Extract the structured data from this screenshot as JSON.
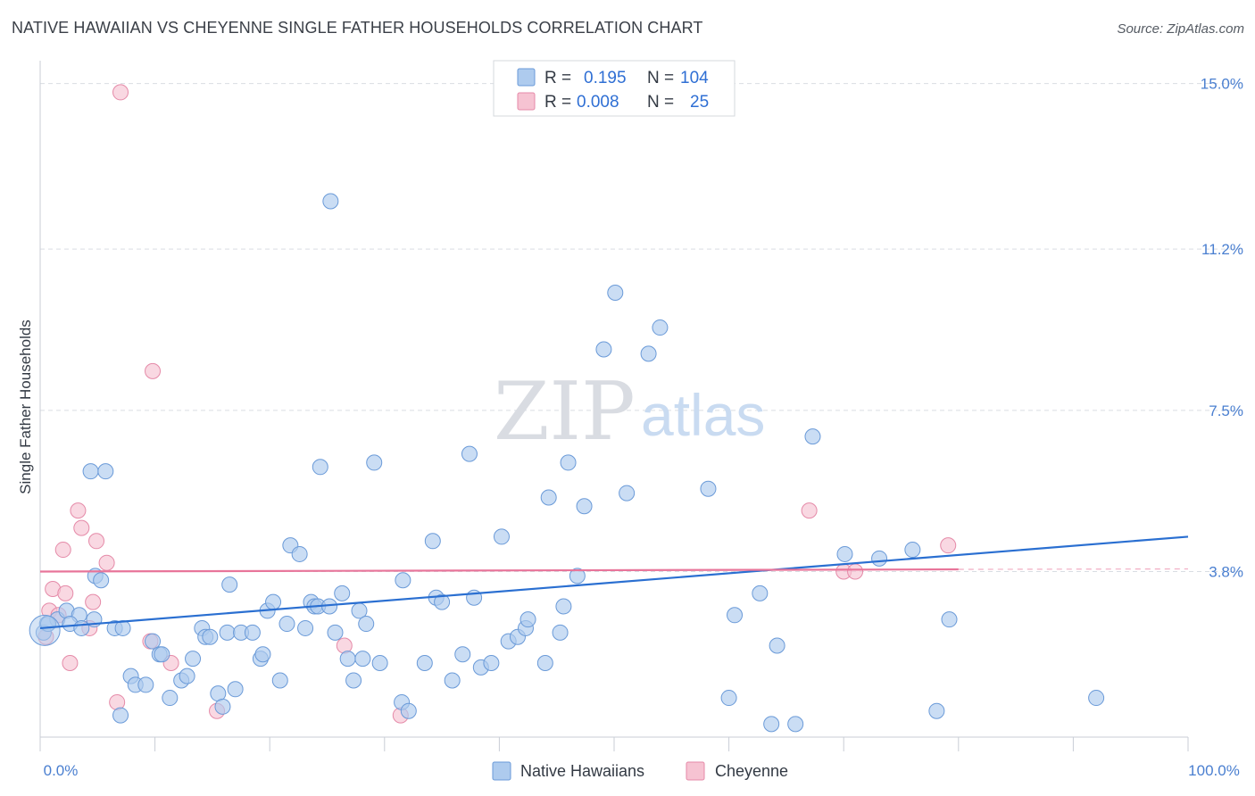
{
  "title": "NATIVE HAWAIIAN VS CHEYENNE SINGLE FATHER HOUSEHOLDS CORRELATION CHART",
  "source": "Source: ZipAtlas.com",
  "watermark": {
    "zip": "ZIP",
    "atlas": "atlas"
  },
  "colors": {
    "blue_fill": "#aecbee",
    "blue_stroke": "#6a9ad8",
    "blue_line": "#2a6fd1",
    "pink_fill": "#f6c3d2",
    "pink_stroke": "#e58aa8",
    "pink_line": "#e8759a",
    "grid": "#d9dde3",
    "tick_text": "#4a7fd0"
  },
  "legend": {
    "rows": [
      {
        "r_label": "R = ",
        "r_value": "0.195",
        "n_label": "N = ",
        "n_value": "104"
      },
      {
        "r_label": "R = ",
        "r_value": "0.008",
        "n_label": "N = ",
        "n_value": "25"
      }
    ]
  },
  "bottom_legend": [
    "Native Hawaiians",
    "Cheyenne"
  ],
  "chart_data": {
    "type": "scatter",
    "title": "NATIVE HAWAIIAN VS CHEYENNE SINGLE FATHER HOUSEHOLDS CORRELATION CHART",
    "xlabel": "",
    "ylabel": "Single Father Households",
    "xlim": [
      0,
      100
    ],
    "ylim": [
      0,
      15.3
    ],
    "x_tick_labels": [
      "0.0%",
      "100.0%"
    ],
    "y_ticks": [
      3.8,
      7.5,
      11.2,
      15.0
    ],
    "y_tick_labels": [
      "3.8%",
      "7.5%",
      "11.2%",
      "15.0%"
    ],
    "grid": true,
    "legend_position": "top-center",
    "series": [
      {
        "name": "Native Hawaiians",
        "trend": {
          "x0": 0,
          "y0": 2.5,
          "x1": 100,
          "y1": 4.6
        },
        "points": [
          [
            0.6,
            2.6
          ],
          [
            1.5,
            2.7
          ],
          [
            2.3,
            2.9
          ],
          [
            3.4,
            2.8
          ],
          [
            2.6,
            2.6
          ],
          [
            4.7,
            2.7
          ],
          [
            3.6,
            2.5
          ],
          [
            4.4,
            6.1
          ],
          [
            5.7,
            6.1
          ],
          [
            4.8,
            3.7
          ],
          [
            5.3,
            3.6
          ],
          [
            6.5,
            2.5
          ],
          [
            7.2,
            2.5
          ],
          [
            7.0,
            0.5
          ],
          [
            7.9,
            1.4
          ],
          [
            8.3,
            1.2
          ],
          [
            9.2,
            1.2
          ],
          [
            9.8,
            2.2
          ],
          [
            10.4,
            1.9
          ],
          [
            10.6,
            1.9
          ],
          [
            11.3,
            0.9
          ],
          [
            12.3,
            1.3
          ],
          [
            12.8,
            1.4
          ],
          [
            13.3,
            1.8
          ],
          [
            14.1,
            2.5
          ],
          [
            14.4,
            2.3
          ],
          [
            14.8,
            2.3
          ],
          [
            15.5,
            1.0
          ],
          [
            15.9,
            0.7
          ],
          [
            16.3,
            2.4
          ],
          [
            16.5,
            3.5
          ],
          [
            17.0,
            1.1
          ],
          [
            17.5,
            2.4
          ],
          [
            18.5,
            2.4
          ],
          [
            19.2,
            1.8
          ],
          [
            19.4,
            1.9
          ],
          [
            19.8,
            2.9
          ],
          [
            20.3,
            3.1
          ],
          [
            20.9,
            1.3
          ],
          [
            21.5,
            2.6
          ],
          [
            21.8,
            4.4
          ],
          [
            22.6,
            4.2
          ],
          [
            23.1,
            2.5
          ],
          [
            23.6,
            3.1
          ],
          [
            23.9,
            3.0
          ],
          [
            24.2,
            3.0
          ],
          [
            24.4,
            6.2
          ],
          [
            25.2,
            3.0
          ],
          [
            25.3,
            12.3
          ],
          [
            25.7,
            2.4
          ],
          [
            26.3,
            3.3
          ],
          [
            26.8,
            1.8
          ],
          [
            27.3,
            1.3
          ],
          [
            27.8,
            2.9
          ],
          [
            28.1,
            1.8
          ],
          [
            28.4,
            2.6
          ],
          [
            29.1,
            6.3
          ],
          [
            29.6,
            1.7
          ],
          [
            31.5,
            0.8
          ],
          [
            31.6,
            3.6
          ],
          [
            32.1,
            0.6
          ],
          [
            33.5,
            1.7
          ],
          [
            34.2,
            4.5
          ],
          [
            34.5,
            3.2
          ],
          [
            35.0,
            3.1
          ],
          [
            35.9,
            1.3
          ],
          [
            36.8,
            1.9
          ],
          [
            37.4,
            6.5
          ],
          [
            37.8,
            3.2
          ],
          [
            38.4,
            1.6
          ],
          [
            39.3,
            1.7
          ],
          [
            40.2,
            4.6
          ],
          [
            40.8,
            2.2
          ],
          [
            41.6,
            2.3
          ],
          [
            42.3,
            2.5
          ],
          [
            42.5,
            2.7
          ],
          [
            44.0,
            1.7
          ],
          [
            44.3,
            5.5
          ],
          [
            45.3,
            2.4
          ],
          [
            45.6,
            3.0
          ],
          [
            46.0,
            6.3
          ],
          [
            46.8,
            3.7
          ],
          [
            47.4,
            5.3
          ],
          [
            49.1,
            8.9
          ],
          [
            50.1,
            10.2
          ],
          [
            51.1,
            5.6
          ],
          [
            53.0,
            8.8
          ],
          [
            54.0,
            9.4
          ],
          [
            58.2,
            5.7
          ],
          [
            60.0,
            0.9
          ],
          [
            60.5,
            2.8
          ],
          [
            62.7,
            3.3
          ],
          [
            63.7,
            0.3
          ],
          [
            64.2,
            2.1
          ],
          [
            65.8,
            0.3
          ],
          [
            67.3,
            6.9
          ],
          [
            70.1,
            4.2
          ],
          [
            73.1,
            4.1
          ],
          [
            76.0,
            4.3
          ],
          [
            78.1,
            0.6
          ],
          [
            79.2,
            2.7
          ],
          [
            92.0,
            0.9
          ],
          [
            0.3,
            2.4
          ],
          [
            0.7,
            2.6
          ]
        ]
      },
      {
        "name": "Cheyenne",
        "trend": {
          "x0": 0,
          "y0": 3.8,
          "x1": 80,
          "y1": 3.85
        },
        "points": [
          [
            0.5,
            2.3
          ],
          [
            0.8,
            2.9
          ],
          [
            1.1,
            3.4
          ],
          [
            1.6,
            2.8
          ],
          [
            2.0,
            4.3
          ],
          [
            2.2,
            3.3
          ],
          [
            2.6,
            1.7
          ],
          [
            3.3,
            5.2
          ],
          [
            3.6,
            4.8
          ],
          [
            4.3,
            2.5
          ],
          [
            4.6,
            3.1
          ],
          [
            4.9,
            4.5
          ],
          [
            5.8,
            4.0
          ],
          [
            6.7,
            0.8
          ],
          [
            7.0,
            14.8
          ],
          [
            9.6,
            2.2
          ],
          [
            9.8,
            8.4
          ],
          [
            11.4,
            1.7
          ],
          [
            15.4,
            0.6
          ],
          [
            26.5,
            2.1
          ],
          [
            31.4,
            0.5
          ],
          [
            67.0,
            5.2
          ],
          [
            70.0,
            3.8
          ],
          [
            71.0,
            3.8
          ],
          [
            79.1,
            4.4
          ]
        ]
      }
    ]
  }
}
